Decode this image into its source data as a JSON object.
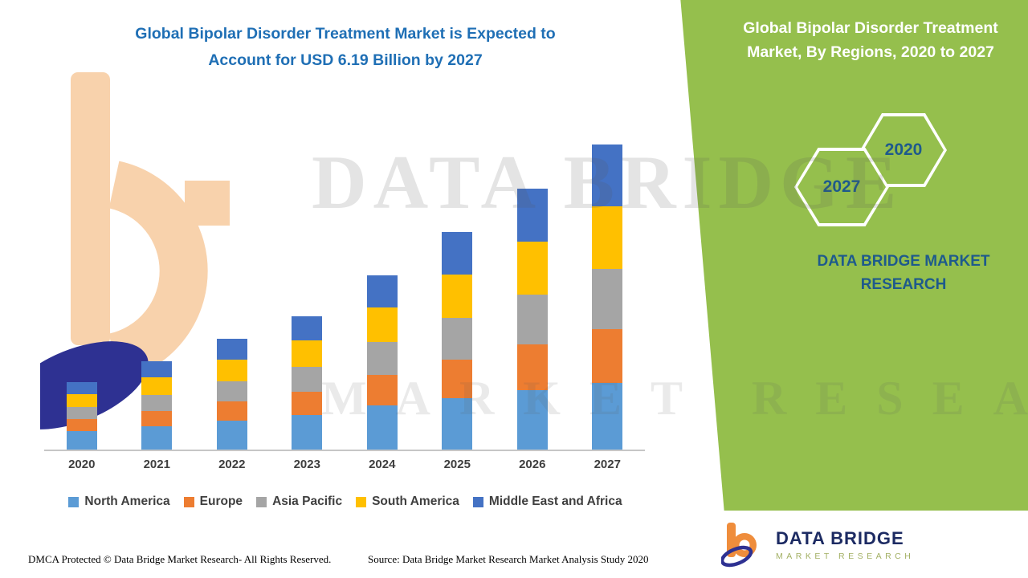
{
  "header": {
    "title_line1": "Global Bipolar Disorder Treatment Market is Expected to",
    "title_line2": "Account for USD 6.19 Billion by 2027"
  },
  "side_panel": {
    "title": "Global Bipolar Disorder Treatment Market, By Regions, 2020 to 2027",
    "hexagons": [
      {
        "label": "2020"
      },
      {
        "label": "2027"
      }
    ],
    "brand_line1": "DATA BRIDGE MARKET",
    "brand_line2": "RESEARCH",
    "panel_color": "#95BF4D",
    "accent_text_color": "#1E5A8C"
  },
  "logo": {
    "title": "DATA BRIDGE",
    "subtitle": "MARKET RESEARCH"
  },
  "watermark": {
    "line1": "DATA BRIDGE",
    "line2": "MARKET RESEARCH"
  },
  "footer": {
    "dmca": "DMCA Protected © Data Bridge Market Research- All Rights Reserved.",
    "source": "Source: Data Bridge Market Research Market Analysis Study 2020"
  },
  "chart_data": {
    "type": "bar",
    "stacked": true,
    "unit": "USD Billion",
    "categories": [
      "2020",
      "2021",
      "2022",
      "2023",
      "2024",
      "2025",
      "2026",
      "2027"
    ],
    "series": [
      {
        "name": "North America",
        "color": "#5B9BD5",
        "values": [
          0.37,
          0.47,
          0.58,
          0.7,
          0.9,
          1.05,
          1.2,
          1.35
        ]
      },
      {
        "name": "Europe",
        "color": "#ED7D31",
        "values": [
          0.25,
          0.32,
          0.4,
          0.48,
          0.62,
          0.78,
          0.93,
          1.1
        ]
      },
      {
        "name": "Asia Pacific",
        "color": "#A5A5A5",
        "values": [
          0.24,
          0.32,
          0.41,
          0.5,
          0.66,
          0.84,
          1.02,
          1.22
        ]
      },
      {
        "name": "South America",
        "color": "#FFC000",
        "values": [
          0.27,
          0.35,
          0.44,
          0.53,
          0.7,
          0.88,
          1.07,
          1.26
        ]
      },
      {
        "name": "Middle East and Africa",
        "color": "#4472C4",
        "values": [
          0.24,
          0.33,
          0.42,
          0.49,
          0.66,
          0.86,
          1.07,
          1.26
        ]
      }
    ],
    "totals": [
      1.37,
      1.79,
      2.25,
      2.7,
      3.54,
      4.41,
      5.29,
      6.19
    ],
    "ylim": [
      0,
      6.5
    ],
    "grid": false,
    "legend_position": "bottom"
  }
}
